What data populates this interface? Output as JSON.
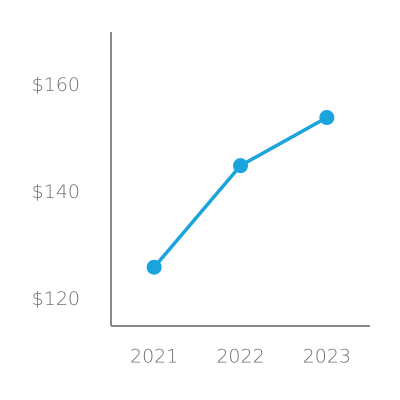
{
  "chart_data": {
    "type": "line",
    "categories": [
      "2021",
      "2022",
      "2023"
    ],
    "values": [
      126,
      145,
      154
    ],
    "color": "#1ba3dd",
    "ylim": [
      115,
      170
    ],
    "yticks": [
      {
        "value": 120,
        "label": "$120"
      },
      {
        "value": 140,
        "label": "$140"
      },
      {
        "value": 160,
        "label": "$160"
      }
    ],
    "grid": false
  }
}
